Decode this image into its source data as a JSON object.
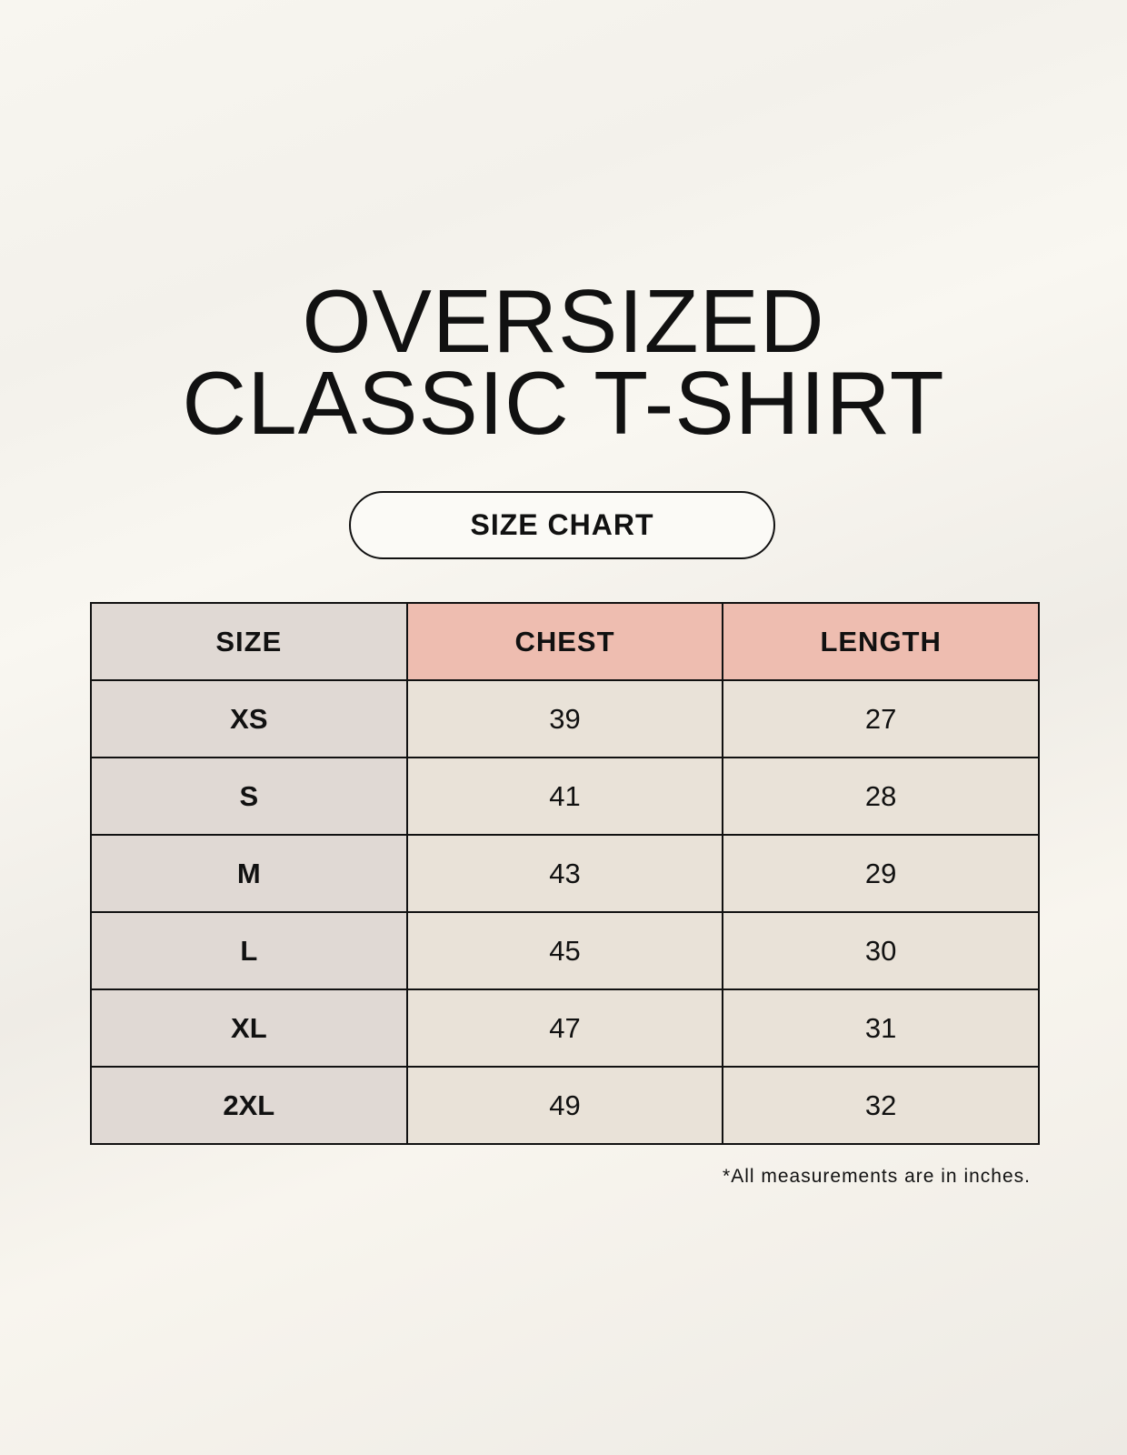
{
  "title": {
    "line1": "OVERSIZED",
    "line2": "CLASSIC T-SHIRT"
  },
  "badge": "SIZE CHART",
  "table": {
    "headers": [
      "SIZE",
      "CHEST",
      "LENGTH"
    ],
    "rows": [
      [
        "XS",
        "39",
        "27"
      ],
      [
        "S",
        "41",
        "28"
      ],
      [
        "M",
        "43",
        "29"
      ],
      [
        "L",
        "45",
        "30"
      ],
      [
        "XL",
        "47",
        "31"
      ],
      [
        "2XL",
        "49",
        "32"
      ]
    ]
  },
  "footnote": "*All measurements are in inches.",
  "colors": {
    "size_column": "#e0d9d4",
    "header_accent": "#eebdb0",
    "value_cells": "#e9e2d8"
  }
}
